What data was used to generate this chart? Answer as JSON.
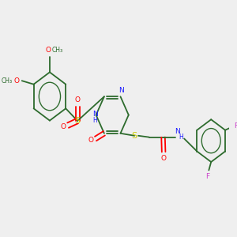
{
  "bg_color": "#efefef",
  "bond_color": "#2d6b2d",
  "N_color": "#1a1aff",
  "O_color": "#ff0000",
  "S_color": "#cccc00",
  "F_color": "#cc44cc",
  "lw": 1.3,
  "fs": 6.5,
  "xlim": [
    0,
    10
  ],
  "ylim": [
    0,
    8
  ]
}
